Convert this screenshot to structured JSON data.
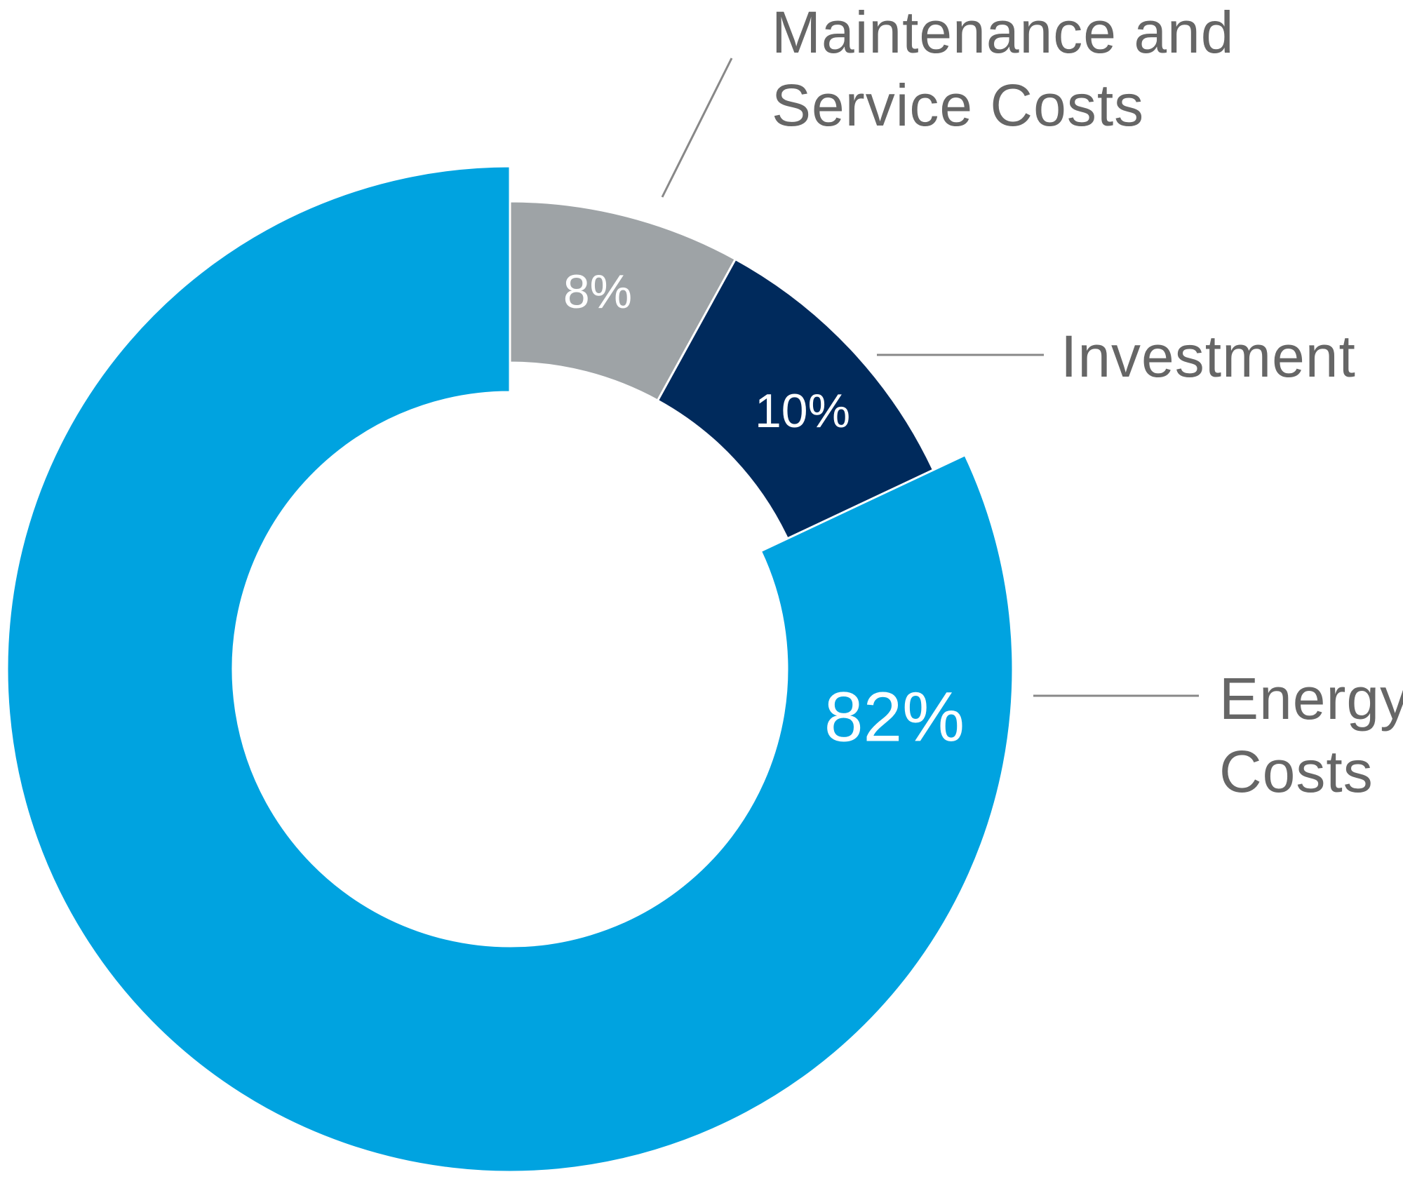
{
  "chart_data": {
    "type": "pie",
    "categories": [
      "Maintenance and Service Costs",
      "Investment",
      "Energy Costs"
    ],
    "values": [
      8,
      10,
      82
    ],
    "value_labels": [
      "8%",
      "10%",
      "82%"
    ],
    "colors": [
      "#9ea3a6",
      "#002a5c",
      "#00a3e0"
    ]
  }
}
